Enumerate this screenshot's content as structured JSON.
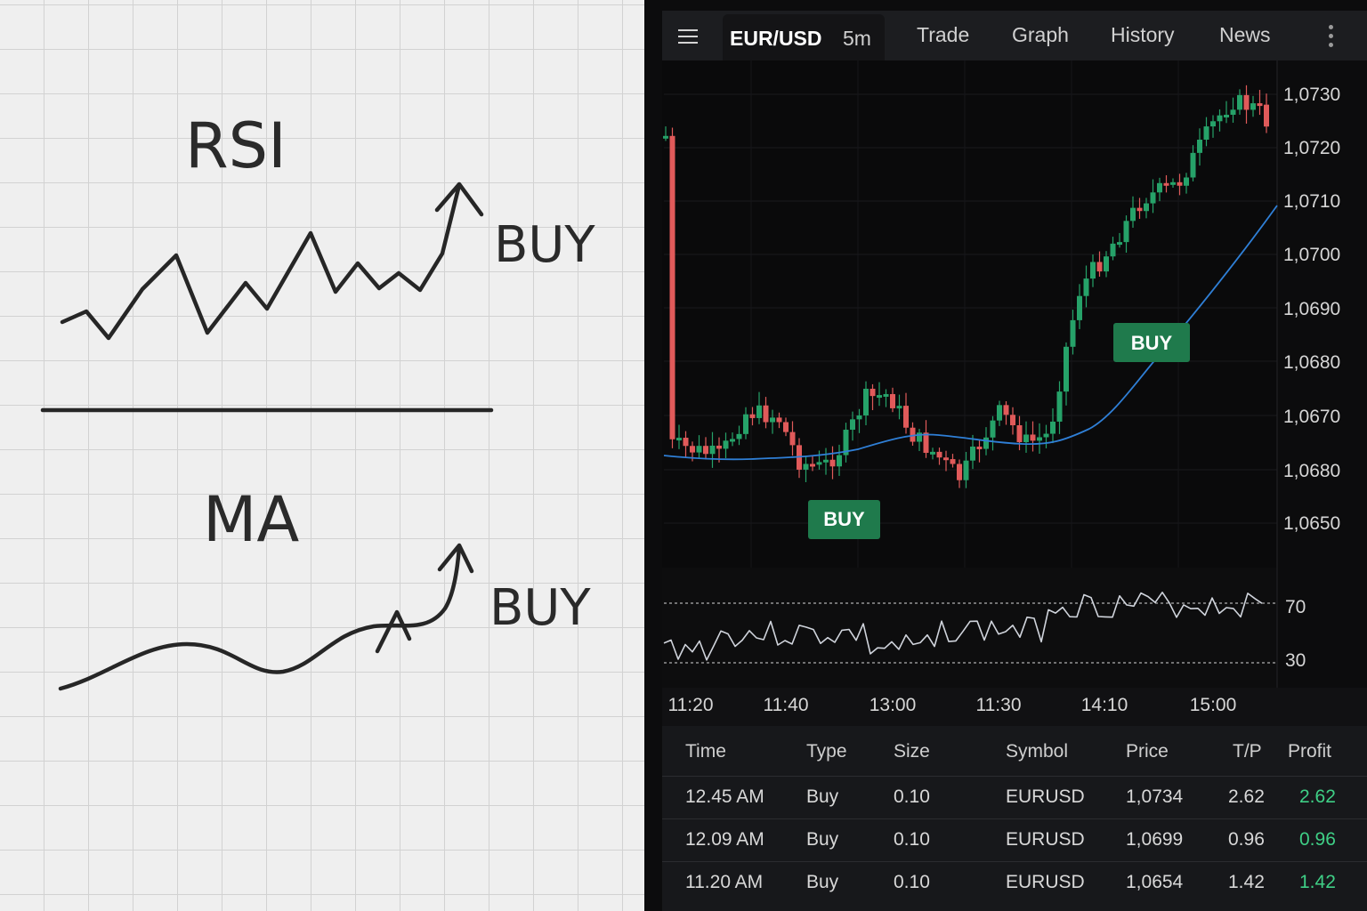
{
  "notebook": {
    "rsi_title": "RSI",
    "rsi_signal": "BUY",
    "ma_title": "MA",
    "ma_signal": "BUY"
  },
  "header": {
    "symbol": "EUR/USD",
    "timeframe": "5m",
    "nav": [
      "Trade",
      "Graph",
      "History",
      "News"
    ],
    "menu_icon": "hamburger-icon",
    "more_icon": "vertical-dots-icon"
  },
  "chart": {
    "price_ticks": [
      "1,0730",
      "1,0720",
      "1,0710",
      "1,0700",
      "1,0690",
      "1,0680",
      "1,0670",
      "1,0680",
      "1,0650"
    ],
    "time_ticks": [
      "11:20",
      "11:40",
      "13:00",
      "11:30",
      "14:10",
      "15:00"
    ],
    "rsi_levels": [
      "70",
      "30"
    ],
    "signals": [
      "BUY",
      "BUY"
    ],
    "colors": {
      "up": "#26a269",
      "down": "#e05a5a",
      "ma": "#2f7fd6",
      "rsi": "#d0d4dc",
      "badge": "#1f7a4c"
    }
  },
  "trades": {
    "headers": [
      "Time",
      "Type",
      "Size",
      "Symbol",
      "Price",
      "T/P",
      "Profit"
    ],
    "rows": [
      [
        "12.45 AM",
        "Buy",
        "0.10",
        "EURUSD",
        "1,0734",
        "2.62",
        "2.62"
      ],
      [
        "12.09 AM",
        "Buy",
        "0.10",
        "EURUSD",
        "1,0699",
        "0.96",
        "0.96"
      ],
      [
        "11.20 AM",
        "Buy",
        "0.10",
        "EURUSD",
        "1,0654",
        "1.42",
        "1.42"
      ]
    ],
    "profit_color": "#3fcf86"
  }
}
